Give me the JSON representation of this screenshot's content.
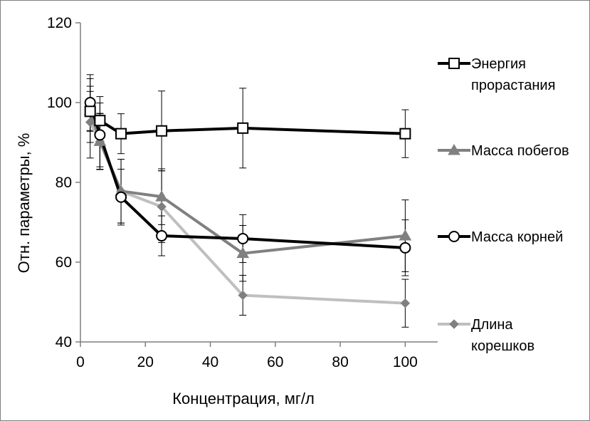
{
  "chart_data": {
    "type": "line",
    "title": "",
    "xlabel": "Концентрация, мг/л",
    "ylabel": "Отн. параметры, %",
    "xlim": [
      0,
      110
    ],
    "ylim": [
      40,
      120
    ],
    "x_ticks": [
      0,
      20,
      40,
      60,
      80,
      100
    ],
    "y_ticks": [
      40,
      60,
      80,
      100,
      120
    ],
    "grid": false,
    "legend_position": "right",
    "series": [
      {
        "name": "Энергия прорастания",
        "name_lines": [
          "Энергия",
          "прорастания"
        ],
        "marker": "square",
        "color": "#000000",
        "marker_fill": "#ffffff",
        "x": [
          3,
          6,
          12.5,
          25,
          50,
          100
        ],
        "y": [
          97.8,
          95.5,
          92.2,
          92.9,
          93.6,
          92.2
        ],
        "err": [
          5,
          6,
          5,
          10,
          10,
          6
        ]
      },
      {
        "name": "Масса побегов",
        "name_lines": [
          "Масса побегов"
        ],
        "marker": "triangle",
        "color": "#808080",
        "marker_fill": "#808080",
        "x": [
          3,
          6,
          12.5,
          25,
          50,
          100
        ],
        "y": [
          98,
          90.3,
          77.8,
          76.4,
          62.2,
          66.6
        ],
        "err": [
          8,
          7,
          8,
          7,
          7,
          9
        ]
      },
      {
        "name": "Масса корней",
        "name_lines": [
          "Масса корней"
        ],
        "marker": "circle",
        "color": "#000000",
        "marker_fill": "#ffffff",
        "x": [
          3,
          6,
          12.5,
          25,
          50,
          100
        ],
        "y": [
          100,
          91.9,
          76.3,
          66.6,
          65.9,
          63.6
        ],
        "err": [
          7,
          8,
          7,
          5,
          6,
          7
        ]
      },
      {
        "name": "Длина корешков",
        "name_lines": [
          "Длина",
          "корешков"
        ],
        "marker": "diamond",
        "color": "#bfbfbf",
        "marker_fill": "#7f7f7f",
        "x": [
          3,
          6,
          12.5,
          25,
          50,
          100
        ],
        "y": [
          95.1,
          90.2,
          77.8,
          73.9,
          51.7,
          49.7
        ],
        "err": [
          9,
          7,
          8,
          9,
          5,
          6
        ]
      }
    ]
  }
}
